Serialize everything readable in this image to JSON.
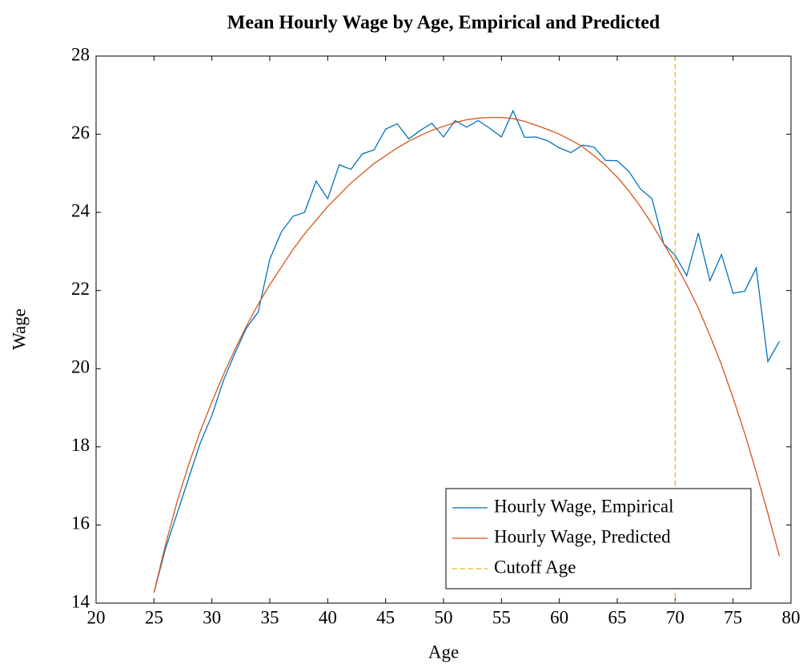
{
  "chart_data": {
    "type": "line",
    "title": "Mean Hourly Wage by Age, Empirical and Predicted",
    "xlabel": "Age",
    "ylabel": "Wage",
    "x": [
      25,
      26,
      27,
      28,
      29,
      30,
      31,
      32,
      33,
      34,
      35,
      36,
      37,
      38,
      39,
      40,
      41,
      42,
      43,
      44,
      45,
      46,
      47,
      48,
      49,
      50,
      51,
      52,
      53,
      54,
      55,
      56,
      57,
      58,
      59,
      60,
      61,
      62,
      63,
      64,
      65,
      66,
      67,
      68,
      69,
      70,
      71,
      72,
      73,
      74,
      75,
      76,
      77,
      78,
      79
    ],
    "series": [
      {
        "name": "Hourly Wage, Empirical",
        "color": "#0072bd",
        "values": [
          14.27,
          15.4,
          16.3,
          17.2,
          18.1,
          18.8,
          19.7,
          20.4,
          21.05,
          21.45,
          22.8,
          23.5,
          23.9,
          24.0,
          24.8,
          24.35,
          25.22,
          25.1,
          25.5,
          25.6,
          26.13,
          26.27,
          25.88,
          26.1,
          26.28,
          25.93,
          26.35,
          26.18,
          26.35,
          26.15,
          25.93,
          26.6,
          25.92,
          25.93,
          25.83,
          25.65,
          25.53,
          25.72,
          25.67,
          25.33,
          25.32,
          25.05,
          24.6,
          24.35,
          23.2,
          22.9,
          22.38,
          23.47,
          22.25,
          22.92,
          21.93,
          21.98,
          22.58,
          20.18,
          20.7
        ]
      },
      {
        "name": "Hourly Wage, Predicted",
        "color": "#d95319",
        "values": [
          14.27,
          15.5,
          16.6,
          17.55,
          18.4,
          19.15,
          19.85,
          20.5,
          21.1,
          21.65,
          22.15,
          22.6,
          23.05,
          23.45,
          23.8,
          24.15,
          24.45,
          24.75,
          25.0,
          25.25,
          25.45,
          25.65,
          25.82,
          25.97,
          26.1,
          26.2,
          26.3,
          26.37,
          26.41,
          26.43,
          26.43,
          26.4,
          26.33,
          26.23,
          26.12,
          26.0,
          25.85,
          25.68,
          25.45,
          25.2,
          24.9,
          24.55,
          24.15,
          23.7,
          23.2,
          22.7,
          22.15,
          21.55,
          20.85,
          20.1,
          19.25,
          18.35,
          17.35,
          16.3,
          15.2
        ]
      }
    ],
    "cutoff": {
      "name": "Cutoff Age",
      "color": "#edb120",
      "x": 70
    },
    "xlim": [
      20,
      80
    ],
    "xticks": [
      20,
      25,
      30,
      35,
      40,
      45,
      50,
      55,
      60,
      65,
      70,
      75,
      80
    ],
    "ylim": [
      14,
      28
    ],
    "yticks": [
      14,
      16,
      18,
      20,
      22,
      24,
      26,
      28
    ],
    "legend": "lower right"
  }
}
